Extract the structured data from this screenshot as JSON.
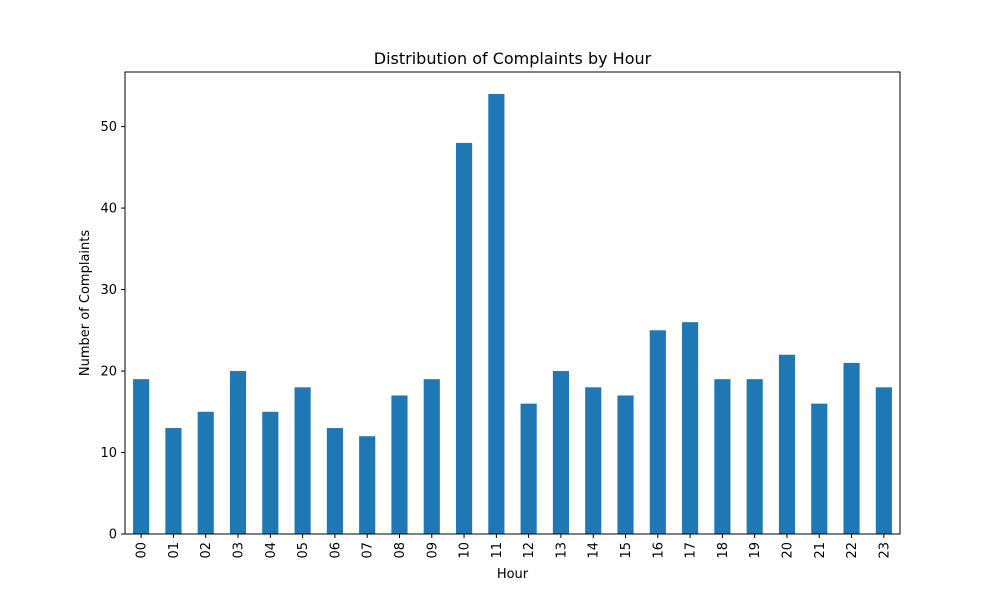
{
  "chart_data": {
    "type": "bar",
    "title": "Distribution of Complaints by Hour",
    "xlabel": "Hour",
    "ylabel": "Number of Complaints",
    "categories": [
      "00",
      "01",
      "02",
      "03",
      "04",
      "05",
      "06",
      "07",
      "08",
      "09",
      "10",
      "11",
      "12",
      "13",
      "14",
      "15",
      "16",
      "17",
      "18",
      "19",
      "20",
      "21",
      "22",
      "23"
    ],
    "values": [
      19,
      13,
      15,
      20,
      15,
      18,
      13,
      12,
      17,
      19,
      48,
      54,
      16,
      20,
      18,
      17,
      25,
      26,
      19,
      19,
      22,
      16,
      21,
      18
    ],
    "ylim": [
      0,
      56.7
    ],
    "yticks": [
      0,
      10,
      20,
      30,
      40,
      50
    ],
    "grid": false,
    "bar_color": "#1f77b4"
  }
}
